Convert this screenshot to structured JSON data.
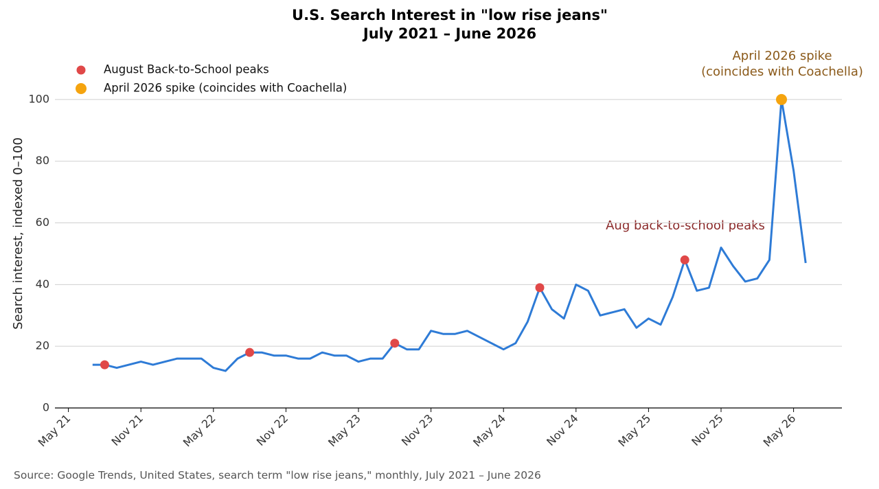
{
  "chart_data": {
    "type": "line",
    "title": [
      "U.S. Search Interest in \"low rise jeans\"",
      "July 2021 – June 2026"
    ],
    "y_label": "Search interest, indexed 0–100",
    "source": "Source: Google Trends, United States, search term \"low rise jeans,\" monthly, July 2021 – June 2026",
    "x": [
      "2021-07",
      "2021-08",
      "2021-09",
      "2021-10",
      "2021-11",
      "2021-12",
      "2022-01",
      "2022-02",
      "2022-03",
      "2022-04",
      "2022-05",
      "2022-06",
      "2022-07",
      "2022-08",
      "2022-09",
      "2022-10",
      "2022-11",
      "2022-12",
      "2023-01",
      "2023-02",
      "2023-03",
      "2023-04",
      "2023-05",
      "2023-06",
      "2023-07",
      "2023-08",
      "2023-09",
      "2023-10",
      "2023-11",
      "2023-12",
      "2024-01",
      "2024-02",
      "2024-03",
      "2024-04",
      "2024-05",
      "2024-06",
      "2024-07",
      "2024-08",
      "2024-09",
      "2024-10",
      "2024-11",
      "2024-12",
      "2025-01",
      "2025-02",
      "2025-03",
      "2025-04",
      "2025-05",
      "2025-06",
      "2025-07",
      "2025-08",
      "2025-09",
      "2025-10",
      "2025-11",
      "2025-12",
      "2026-01",
      "2026-02",
      "2026-03",
      "2026-04",
      "2026-05",
      "2026-06"
    ],
    "values": [
      14,
      14,
      13,
      14,
      15,
      14,
      15,
      16,
      16,
      16,
      13,
      12,
      16,
      18,
      18,
      17,
      17,
      16,
      16,
      18,
      17,
      17,
      15,
      16,
      16,
      21,
      19,
      19,
      25,
      24,
      24,
      25,
      23,
      21,
      19,
      21,
      28,
      39,
      32,
      29,
      40,
      38,
      30,
      31,
      32,
      26,
      29,
      27,
      36,
      48,
      38,
      39,
      52,
      46,
      41,
      42,
      48,
      100,
      77,
      47
    ],
    "color": "#2e7bd6",
    "highlights": [
      {
        "name": "August Back-to-School peaks",
        "color": "#e04848",
        "x": [
          "2021-08",
          "2022-08",
          "2023-08",
          "2024-08",
          "2025-08"
        ],
        "values": [
          14,
          18,
          21,
          39,
          48
        ]
      },
      {
        "name": "April 2026 spike (coincides with Coachella)",
        "color": "#f5a40f",
        "x": [
          "2026-04"
        ],
        "values": [
          100
        ]
      }
    ],
    "annotations": [
      [
        "Aug back-to-school peaks"
      ],
      [
        "April 2026 spike",
        "(coincides with Coachella)"
      ]
    ],
    "xlim": [
      "2021-04",
      "2026-09"
    ],
    "xticks": [
      {
        "value": "2021-05",
        "label": "May 21"
      },
      {
        "value": "2021-11",
        "label": "Nov 21"
      },
      {
        "value": "2022-05",
        "label": "May 22"
      },
      {
        "value": "2022-11",
        "label": "Nov 22"
      },
      {
        "value": "2023-05",
        "label": "May 23"
      },
      {
        "value": "2023-11",
        "label": "Nov 23"
      },
      {
        "value": "2024-05",
        "label": "May 24"
      },
      {
        "value": "2024-11",
        "label": "Nov 24"
      },
      {
        "value": "2025-05",
        "label": "May 25"
      },
      {
        "value": "2025-11",
        "label": "Nov 25"
      },
      {
        "value": "2026-05",
        "label": "May 26"
      }
    ],
    "ylim": [
      0,
      110
    ],
    "yticks": [
      0,
      20,
      40,
      60,
      80,
      100
    ],
    "grid": true
  }
}
